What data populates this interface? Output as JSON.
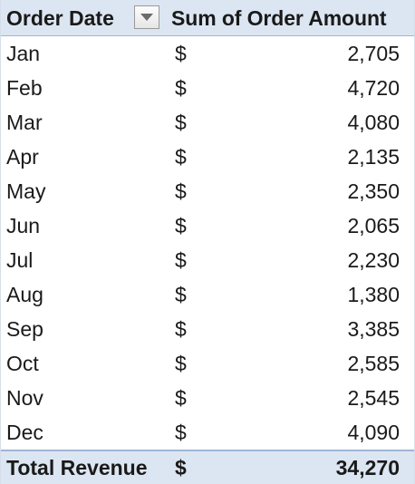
{
  "pivot": {
    "header": {
      "row_label": "Order Date",
      "value_label": "Sum of Order Amount",
      "filter_icon": "dropdown-arrow-icon"
    },
    "currency_symbol": "$",
    "rows": [
      {
        "month": "Jan",
        "amount": "2,705"
      },
      {
        "month": "Feb",
        "amount": "4,720"
      },
      {
        "month": "Mar",
        "amount": "4,080"
      },
      {
        "month": "Apr",
        "amount": "2,135"
      },
      {
        "month": "May",
        "amount": "2,350"
      },
      {
        "month": "Jun",
        "amount": "2,065"
      },
      {
        "month": "Jul",
        "amount": "2,230"
      },
      {
        "month": "Aug",
        "amount": "1,380"
      },
      {
        "month": "Sep",
        "amount": "3,385"
      },
      {
        "month": "Oct",
        "amount": "2,585"
      },
      {
        "month": "Nov",
        "amount": "2,545"
      },
      {
        "month": "Dec",
        "amount": "4,090"
      }
    ],
    "total": {
      "label": "Total Revenue",
      "amount": "34,270"
    },
    "colors": {
      "header_bg": "#dce6f2",
      "border": "#9fb6d4"
    }
  }
}
